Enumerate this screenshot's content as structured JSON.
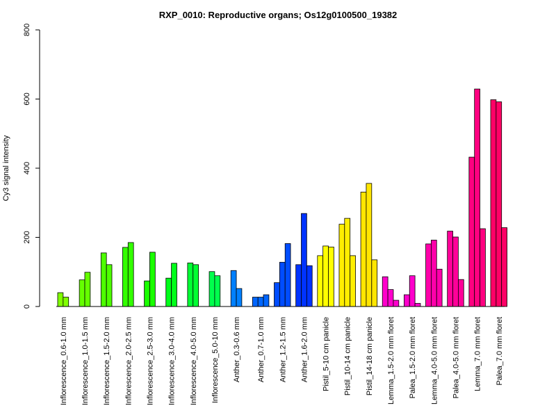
{
  "chart_data": {
    "type": "bar",
    "title": "RXP_0010: Reproductive organs; Os12g0100500_19382",
    "ylabel": "Cy3 signal intensity",
    "xlabel": "",
    "ylim": [
      0,
      800
    ],
    "yticks": [
      0,
      200,
      400,
      600,
      800
    ],
    "grid": false,
    "legend": "none",
    "categories": [
      "Inflorescence_0.6-1.0 mm",
      "Inflorescence_1.0-1.5 mm",
      "Inflorescence_1.5-2.0 mm",
      "Inflorescence_2.0-2.5 mm",
      "Inflorescence_2.5-3.0 mm",
      "Inflorescence_3.0-4.0 mm",
      "Inflorescence_4.0-5.0 mm",
      "Inflorescence_5.0-10 mm",
      "Anther_0.3-0.6 mm",
      "Anther_0.7-1.0 mm",
      "Anther_1.2-1.5 mm",
      "Anther_1.6-2.0 mm",
      "Pistil_5-10 cm panicle",
      "Pistil_10-14 cm panicle",
      "Pistil_14-18 cm panicle",
      "Lemma_1.5-2.0 mm floret",
      "Palea_1.5-2.0 mm floret",
      "Lemma_4.0-5.0 mm floret",
      "Palea_4.0-5.0 mm floret",
      "Lemma_7.0 mm floret",
      "Palea_7.0 mm floret"
    ],
    "groups": [
      {
        "color": "#80ff00",
        "values": [
          40,
          27
        ]
      },
      {
        "color": "#66ff00",
        "values": [
          77,
          99
        ]
      },
      {
        "color": "#4dff00",
        "values": [
          155,
          121
        ]
      },
      {
        "color": "#33ff00",
        "values": [
          171,
          185
        ]
      },
      {
        "color": "#1aff00",
        "values": [
          74,
          157
        ]
      },
      {
        "color": "#00ff1a",
        "values": [
          82,
          125
        ]
      },
      {
        "color": "#00ff33",
        "values": [
          126,
          121
        ]
      },
      {
        "color": "#00ff4d",
        "values": [
          101,
          89
        ]
      },
      {
        "color": "#0080ff",
        "values": [
          104,
          52
        ]
      },
      {
        "color": "#0066ff",
        "values": [
          27,
          27,
          34
        ]
      },
      {
        "color": "#004dff",
        "values": [
          69,
          128,
          182
        ]
      },
      {
        "color": "#0033ff",
        "values": [
          121,
          269,
          118
        ]
      },
      {
        "color": "#ffff00",
        "values": [
          147,
          175,
          172
        ]
      },
      {
        "color": "#ffee00",
        "values": [
          238,
          255,
          147
        ]
      },
      {
        "color": "#ffe600",
        "values": [
          331,
          356,
          135
        ]
      },
      {
        "color": "#ff00cc",
        "values": [
          86,
          49,
          18
        ]
      },
      {
        "color": "#ff00cc",
        "values": [
          34,
          89,
          9
        ]
      },
      {
        "color": "#ff00aa",
        "values": [
          181,
          192,
          108
        ]
      },
      {
        "color": "#ff0099",
        "values": [
          218,
          201,
          78
        ]
      },
      {
        "color": "#ff0080",
        "values": [
          432,
          629,
          225
        ]
      },
      {
        "color": "#ff0066",
        "values": [
          598,
          592,
          228
        ]
      }
    ]
  }
}
